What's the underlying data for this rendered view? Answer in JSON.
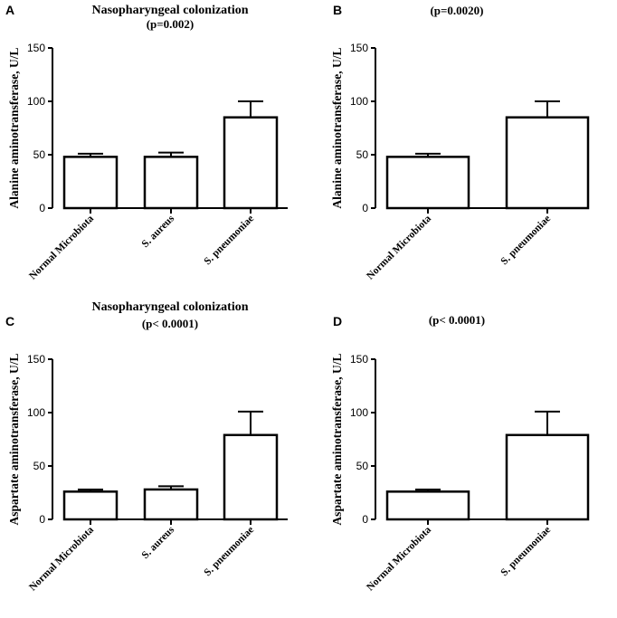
{
  "chart_data": [
    {
      "panel": "A",
      "type": "bar",
      "title": "Nasopharyngeal colonization",
      "subtitle": "(p=0.002)",
      "ylabel": "Alanine aminotransferase, U/L",
      "ylim": [
        0,
        150
      ],
      "yticks": [
        "0",
        "50",
        "100",
        "150"
      ],
      "categories": [
        "Normal Microbiota",
        "S. aureus",
        "S. pneumoniae"
      ],
      "values": [
        48,
        48,
        85
      ],
      "errors": [
        3,
        4,
        15
      ]
    },
    {
      "panel": "B",
      "type": "bar",
      "title": "",
      "subtitle": "(p=0.0020)",
      "ylabel": "Alanine aminotransferase, U/L",
      "ylim": [
        0,
        150
      ],
      "yticks": [
        "0",
        "50",
        "100",
        "150"
      ],
      "categories": [
        "Normal Microbiota",
        "S. pneumoniae"
      ],
      "values": [
        48,
        85
      ],
      "errors": [
        3,
        15
      ]
    },
    {
      "panel": "C",
      "type": "bar",
      "title": "Nasopharyngeal colonization",
      "subtitle": "(p< 0.0001)",
      "ylabel": "Aspartate aminotransferase, U/L",
      "ylim": [
        0,
        150
      ],
      "yticks": [
        "0",
        "50",
        "100",
        "150"
      ],
      "categories": [
        "Normal Microbiota",
        "S. aureus",
        "S. pneumoniae"
      ],
      "values": [
        26,
        28,
        79
      ],
      "errors": [
        2,
        3,
        22
      ]
    },
    {
      "panel": "D",
      "type": "bar",
      "title": "",
      "subtitle": "(p< 0.0001)",
      "ylabel": "Aspartate aminotransferase, U/L",
      "ylim": [
        0,
        150
      ],
      "yticks": [
        "0",
        "50",
        "100",
        "150"
      ],
      "categories": [
        "Normal Microbiota",
        "S. pneumoniae"
      ],
      "values": [
        26,
        79
      ],
      "errors": [
        2,
        22
      ]
    }
  ]
}
